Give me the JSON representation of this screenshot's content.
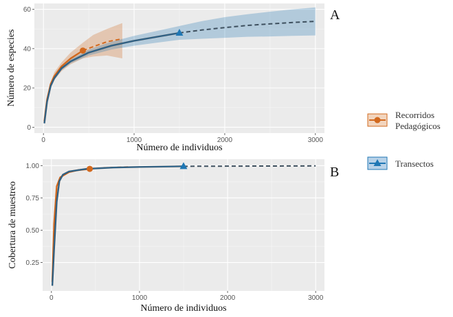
{
  "legend": {
    "items": [
      {
        "label_line1": "Recorridos",
        "label_line2": "Pedagógicos",
        "color": "#D2691E",
        "shape": "circle"
      },
      {
        "label_line1": "Transectos",
        "label_line2": "",
        "color": "#1F77B4",
        "shape": "triangle"
      }
    ]
  },
  "colors": {
    "panel_bg": "#EBEBEB",
    "grid": "#FFFFFF",
    "orange": "#D2691E",
    "blue": "#1F77B4",
    "curve_dark": "#3D4F5E"
  },
  "chart_data": [
    {
      "panel_label": "A",
      "type": "line",
      "xlabel": "Número de individuos",
      "ylabel": "Número de especies",
      "xlim": [
        -100,
        3100
      ],
      "ylim": [
        -3,
        63
      ],
      "xticks": [
        0,
        1000,
        2000,
        3000
      ],
      "xtick_labels": [
        "0",
        "1000",
        "2000",
        "3000"
      ],
      "yticks": [
        0,
        20,
        40,
        60
      ],
      "ytick_labels": [
        "0",
        "20",
        "40",
        "60"
      ],
      "grid": true,
      "series": [
        {
          "name": "Recorridos Pedagógicos",
          "color": "#D2691E",
          "marker": "circle",
          "observed": {
            "x": 435,
            "y": 39
          },
          "interpolated": {
            "x": [
              10,
              40,
              80,
              120,
              200,
              300,
              435
            ],
            "y": [
              3,
              14,
              22,
              26,
              31,
              35,
              39
            ]
          },
          "extrapolated": {
            "x": [
              435,
              550,
              700,
              870
            ],
            "y": [
              39,
              41,
              43.5,
              45
            ]
          },
          "ci_lower": {
            "x": [
              10,
              40,
              80,
              120,
              200,
              300,
              435,
              550,
              700,
              870
            ],
            "y": [
              2,
              13,
              20,
              24,
              28.5,
              32,
              35,
              36,
              36.5,
              35
            ]
          },
          "ci_upper": {
            "x": [
              10,
              40,
              80,
              120,
              200,
              300,
              435,
              550,
              700,
              870
            ],
            "y": [
              4,
              15,
              23,
              28,
              33,
              38,
              43,
              47,
              50,
              53
            ]
          }
        },
        {
          "name": "Transectos",
          "color": "#1F77B4",
          "marker": "triangle",
          "observed": {
            "x": 1500,
            "y": 48
          },
          "interpolated": {
            "x": [
              10,
              40,
              80,
              120,
              200,
              300,
              500,
              750,
              1000,
              1250,
              1500
            ],
            "y": [
              2,
              13,
              21,
              25,
              30,
              33.5,
              38,
              41.5,
              44,
              46,
              48
            ]
          },
          "extrapolated": {
            "x": [
              1500,
              1750,
              2000,
              2250,
              2500,
              2750,
              3000
            ],
            "y": [
              48,
              49.5,
              50.7,
              51.8,
              52.6,
              53.3,
              53.9
            ]
          },
          "ci_lower": {
            "x": [
              10,
              40,
              80,
              120,
              200,
              300,
              500,
              750,
              1000,
              1250,
              1500,
              1750,
              2000,
              2250,
              2500,
              2750,
              3000
            ],
            "y": [
              1.5,
              12,
              20,
              24,
              29,
              32.5,
              36.5,
              39.5,
              41.5,
              43,
              44.5,
              45,
              45.5,
              46,
              46.2,
              46.5,
              46.7
            ]
          },
          "ci_upper": {
            "x": [
              10,
              40,
              80,
              120,
              200,
              300,
              500,
              750,
              1000,
              1250,
              1500,
              1750,
              2000,
              2250,
              2500,
              2750,
              3000
            ],
            "y": [
              2.5,
              14,
              22,
              26,
              31,
              34.5,
              39.5,
              43.5,
              46.5,
              49,
              51.5,
              54,
              56,
              57.5,
              58.8,
              60,
              61
            ]
          }
        }
      ]
    },
    {
      "panel_label": "B",
      "type": "line",
      "xlabel": "Número de individuos",
      "ylabel": "Cobertura de muestreo",
      "xlim": [
        -100,
        3100
      ],
      "ylim": [
        0.03,
        1.05
      ],
      "xticks": [
        0,
        1000,
        2000,
        3000
      ],
      "xtick_labels": [
        "0",
        "1000",
        "2000",
        "3000"
      ],
      "yticks": [
        0.25,
        0.5,
        0.75,
        1.0
      ],
      "ytick_labels": [
        "0.25",
        "0.50",
        "0.75",
        "1.00"
      ],
      "grid": true,
      "series": [
        {
          "name": "Recorridos Pedagógicos",
          "color": "#D2691E",
          "marker": "circle",
          "observed": {
            "x": 435,
            "y": 0.975
          },
          "interpolated": {
            "x": [
              10,
              30,
              60,
              100,
              200,
              300,
              435
            ],
            "y": [
              0.1,
              0.55,
              0.84,
              0.91,
              0.95,
              0.965,
              0.975
            ]
          },
          "extrapolated": {
            "x": [
              435,
              650,
              870
            ],
            "y": [
              0.975,
              0.985,
              0.99
            ]
          }
        },
        {
          "name": "Transectos",
          "color": "#1F77B4",
          "marker": "triangle",
          "observed": {
            "x": 1500,
            "y": 0.995
          },
          "interpolated": {
            "x": [
              10,
              30,
              60,
              90,
              130,
              200,
              400,
              700,
              1000,
              1500
            ],
            "y": [
              0.07,
              0.35,
              0.72,
              0.88,
              0.93,
              0.955,
              0.975,
              0.985,
              0.99,
              0.995
            ]
          },
          "extrapolated": {
            "x": [
              1500,
              2000,
              2500,
              3000
            ],
            "y": [
              0.995,
              0.996,
              0.997,
              0.998
            ]
          }
        }
      ]
    }
  ]
}
